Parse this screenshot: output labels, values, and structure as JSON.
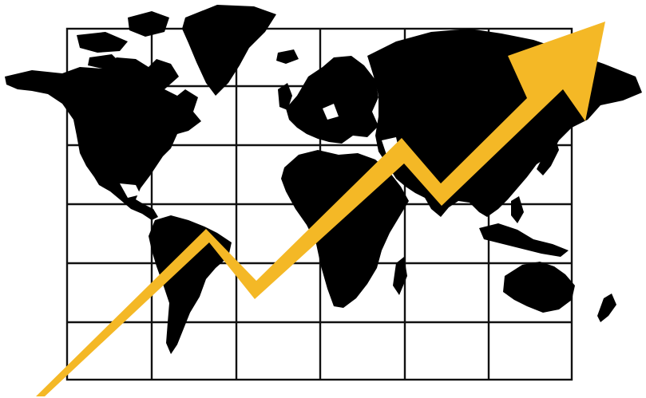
{
  "illustration": {
    "subject": "world-map-growth",
    "icon": "rising-trend-arrow-icon",
    "colors": {
      "background": "#ffffff",
      "grid": "#111111",
      "land": "#000000",
      "arrow": "#f4b826"
    },
    "grid": {
      "columns": 6,
      "rows": 6
    }
  }
}
